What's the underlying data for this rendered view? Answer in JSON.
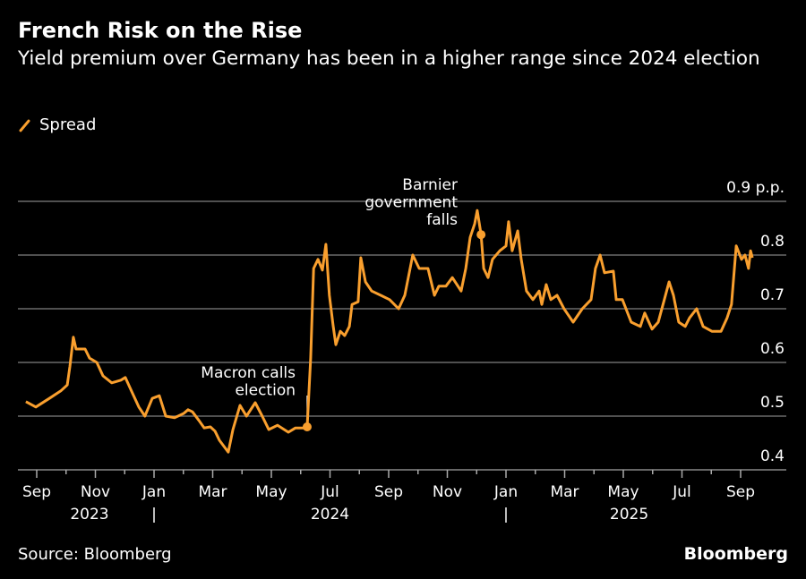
{
  "header": {
    "title": "French Risk on the Rise",
    "subtitle": "Yield premium over Germany has been in a higher range since 2024 election"
  },
  "footer": {
    "source": "Source: Bloomberg",
    "brand": "Bloomberg"
  },
  "colors": {
    "series": "#f99f2e",
    "grid": "#6b6b6b",
    "background": "#000000"
  },
  "chart_data": {
    "type": "line",
    "title": "French Risk on the Rise",
    "subtitle": "Yield premium over Germany has been in a higher range since 2024 election",
    "xlabel": "",
    "ylabel": "p.p.",
    "x_units": "months since 2023-09-01",
    "ylim": [
      0.4,
      0.9
    ],
    "grid": true,
    "legend": {
      "placement": "top-left",
      "entries": [
        "Spread"
      ]
    },
    "y_ticks": [
      {
        "value": 0.9,
        "label": "0.9 p.p."
      },
      {
        "value": 0.8,
        "label": "0.8"
      },
      {
        "value": 0.7,
        "label": "0.7"
      },
      {
        "value": 0.6,
        "label": "0.6"
      },
      {
        "value": 0.5,
        "label": "0.5"
      },
      {
        "value": 0.4,
        "label": "0.4"
      }
    ],
    "x_ticks": [
      {
        "value": 0,
        "label": "Sep"
      },
      {
        "value": 2,
        "label": "Nov"
      },
      {
        "value": 4,
        "label": "Jan"
      },
      {
        "value": 6,
        "label": "Mar"
      },
      {
        "value": 8,
        "label": "May"
      },
      {
        "value": 10,
        "label": "Jul"
      },
      {
        "value": 12,
        "label": "Sep"
      },
      {
        "value": 14,
        "label": "Nov"
      },
      {
        "value": 16,
        "label": "Jan"
      },
      {
        "value": 18,
        "label": "Mar"
      },
      {
        "value": 20,
        "label": "May"
      },
      {
        "value": 22,
        "label": "Jul"
      },
      {
        "value": 24,
        "label": "Sep"
      }
    ],
    "year_labels": [
      {
        "value": 1.8,
        "label": "2023"
      },
      {
        "value": 4,
        "label": "|"
      },
      {
        "value": 10,
        "label": "2024"
      },
      {
        "value": 16,
        "label": "|"
      },
      {
        "value": 20.2,
        "label": "2025"
      }
    ],
    "series": [
      {
        "name": "Spread",
        "points": [
          [
            -0.37,
            0.527
          ],
          [
            -0.03,
            0.517
          ],
          [
            0.43,
            0.533
          ],
          [
            0.82,
            0.547
          ],
          [
            1.04,
            0.558
          ],
          [
            1.13,
            0.592
          ],
          [
            1.25,
            0.647
          ],
          [
            1.34,
            0.625
          ],
          [
            1.65,
            0.625
          ],
          [
            1.8,
            0.608
          ],
          [
            2.05,
            0.6
          ],
          [
            2.26,
            0.575
          ],
          [
            2.56,
            0.562
          ],
          [
            2.87,
            0.567
          ],
          [
            3.02,
            0.572
          ],
          [
            3.27,
            0.542
          ],
          [
            3.48,
            0.517
          ],
          [
            3.69,
            0.5
          ],
          [
            3.94,
            0.533
          ],
          [
            4.18,
            0.538
          ],
          [
            4.4,
            0.5
          ],
          [
            4.7,
            0.497
          ],
          [
            5.01,
            0.505
          ],
          [
            5.16,
            0.512
          ],
          [
            5.31,
            0.508
          ],
          [
            5.53,
            0.492
          ],
          [
            5.71,
            0.478
          ],
          [
            5.92,
            0.48
          ],
          [
            6.08,
            0.472
          ],
          [
            6.23,
            0.455
          ],
          [
            6.53,
            0.433
          ],
          [
            6.69,
            0.475
          ],
          [
            6.93,
            0.52
          ],
          [
            7.15,
            0.5
          ],
          [
            7.45,
            0.525
          ],
          [
            7.69,
            0.5
          ],
          [
            7.91,
            0.475
          ],
          [
            8.21,
            0.483
          ],
          [
            8.58,
            0.47
          ],
          [
            8.82,
            0.478
          ],
          [
            9.13,
            0.478
          ],
          [
            9.22,
            0.48
          ],
          [
            9.34,
            0.608
          ],
          [
            9.44,
            0.775
          ],
          [
            9.59,
            0.792
          ],
          [
            9.74,
            0.772
          ],
          [
            9.86,
            0.82
          ],
          [
            9.98,
            0.725
          ],
          [
            10.11,
            0.667
          ],
          [
            10.2,
            0.633
          ],
          [
            10.35,
            0.658
          ],
          [
            10.5,
            0.65
          ],
          [
            10.66,
            0.667
          ],
          [
            10.75,
            0.708
          ],
          [
            10.96,
            0.713
          ],
          [
            11.05,
            0.795
          ],
          [
            11.21,
            0.75
          ],
          [
            11.42,
            0.733
          ],
          [
            11.73,
            0.725
          ],
          [
            12.03,
            0.717
          ],
          [
            12.34,
            0.7
          ],
          [
            12.55,
            0.725
          ],
          [
            12.82,
            0.8
          ],
          [
            13.04,
            0.775
          ],
          [
            13.34,
            0.775
          ],
          [
            13.56,
            0.725
          ],
          [
            13.71,
            0.742
          ],
          [
            13.95,
            0.742
          ],
          [
            14.17,
            0.758
          ],
          [
            14.47,
            0.733
          ],
          [
            14.63,
            0.775
          ],
          [
            14.78,
            0.833
          ],
          [
            14.93,
            0.858
          ],
          [
            15.02,
            0.883
          ],
          [
            15.15,
            0.838
          ],
          [
            15.24,
            0.775
          ],
          [
            15.39,
            0.758
          ],
          [
            15.54,
            0.792
          ],
          [
            15.79,
            0.808
          ],
          [
            16.0,
            0.817
          ],
          [
            16.09,
            0.862
          ],
          [
            16.21,
            0.808
          ],
          [
            16.4,
            0.845
          ],
          [
            16.52,
            0.792
          ],
          [
            16.7,
            0.733
          ],
          [
            16.92,
            0.717
          ],
          [
            17.13,
            0.733
          ],
          [
            17.22,
            0.708
          ],
          [
            17.37,
            0.745
          ],
          [
            17.53,
            0.717
          ],
          [
            17.74,
            0.725
          ],
          [
            17.98,
            0.7
          ],
          [
            18.29,
            0.675
          ],
          [
            18.6,
            0.7
          ],
          [
            18.9,
            0.717
          ],
          [
            19.05,
            0.775
          ],
          [
            19.21,
            0.8
          ],
          [
            19.36,
            0.767
          ],
          [
            19.66,
            0.77
          ],
          [
            19.76,
            0.717
          ],
          [
            19.97,
            0.717
          ],
          [
            20.27,
            0.675
          ],
          [
            20.58,
            0.667
          ],
          [
            20.73,
            0.692
          ],
          [
            20.98,
            0.662
          ],
          [
            21.19,
            0.675
          ],
          [
            21.4,
            0.717
          ],
          [
            21.56,
            0.75
          ],
          [
            21.71,
            0.725
          ],
          [
            21.89,
            0.675
          ],
          [
            22.11,
            0.667
          ],
          [
            22.26,
            0.683
          ],
          [
            22.5,
            0.7
          ],
          [
            22.72,
            0.667
          ],
          [
            23.02,
            0.658
          ],
          [
            23.33,
            0.658
          ],
          [
            23.54,
            0.683
          ],
          [
            23.69,
            0.708
          ],
          [
            23.85,
            0.817
          ],
          [
            24.03,
            0.792
          ],
          [
            24.15,
            0.8
          ],
          [
            24.27,
            0.775
          ],
          [
            24.34,
            0.808
          ],
          [
            24.4,
            0.795
          ]
        ]
      }
    ],
    "annotations": [
      {
        "label_lines": [
          "Macron calls",
          "election"
        ],
        "x": 9.22,
        "y": 0.48
      },
      {
        "label_lines": [
          "Barnier",
          "government",
          "falls"
        ],
        "x": 15.15,
        "y": 0.838
      }
    ]
  }
}
